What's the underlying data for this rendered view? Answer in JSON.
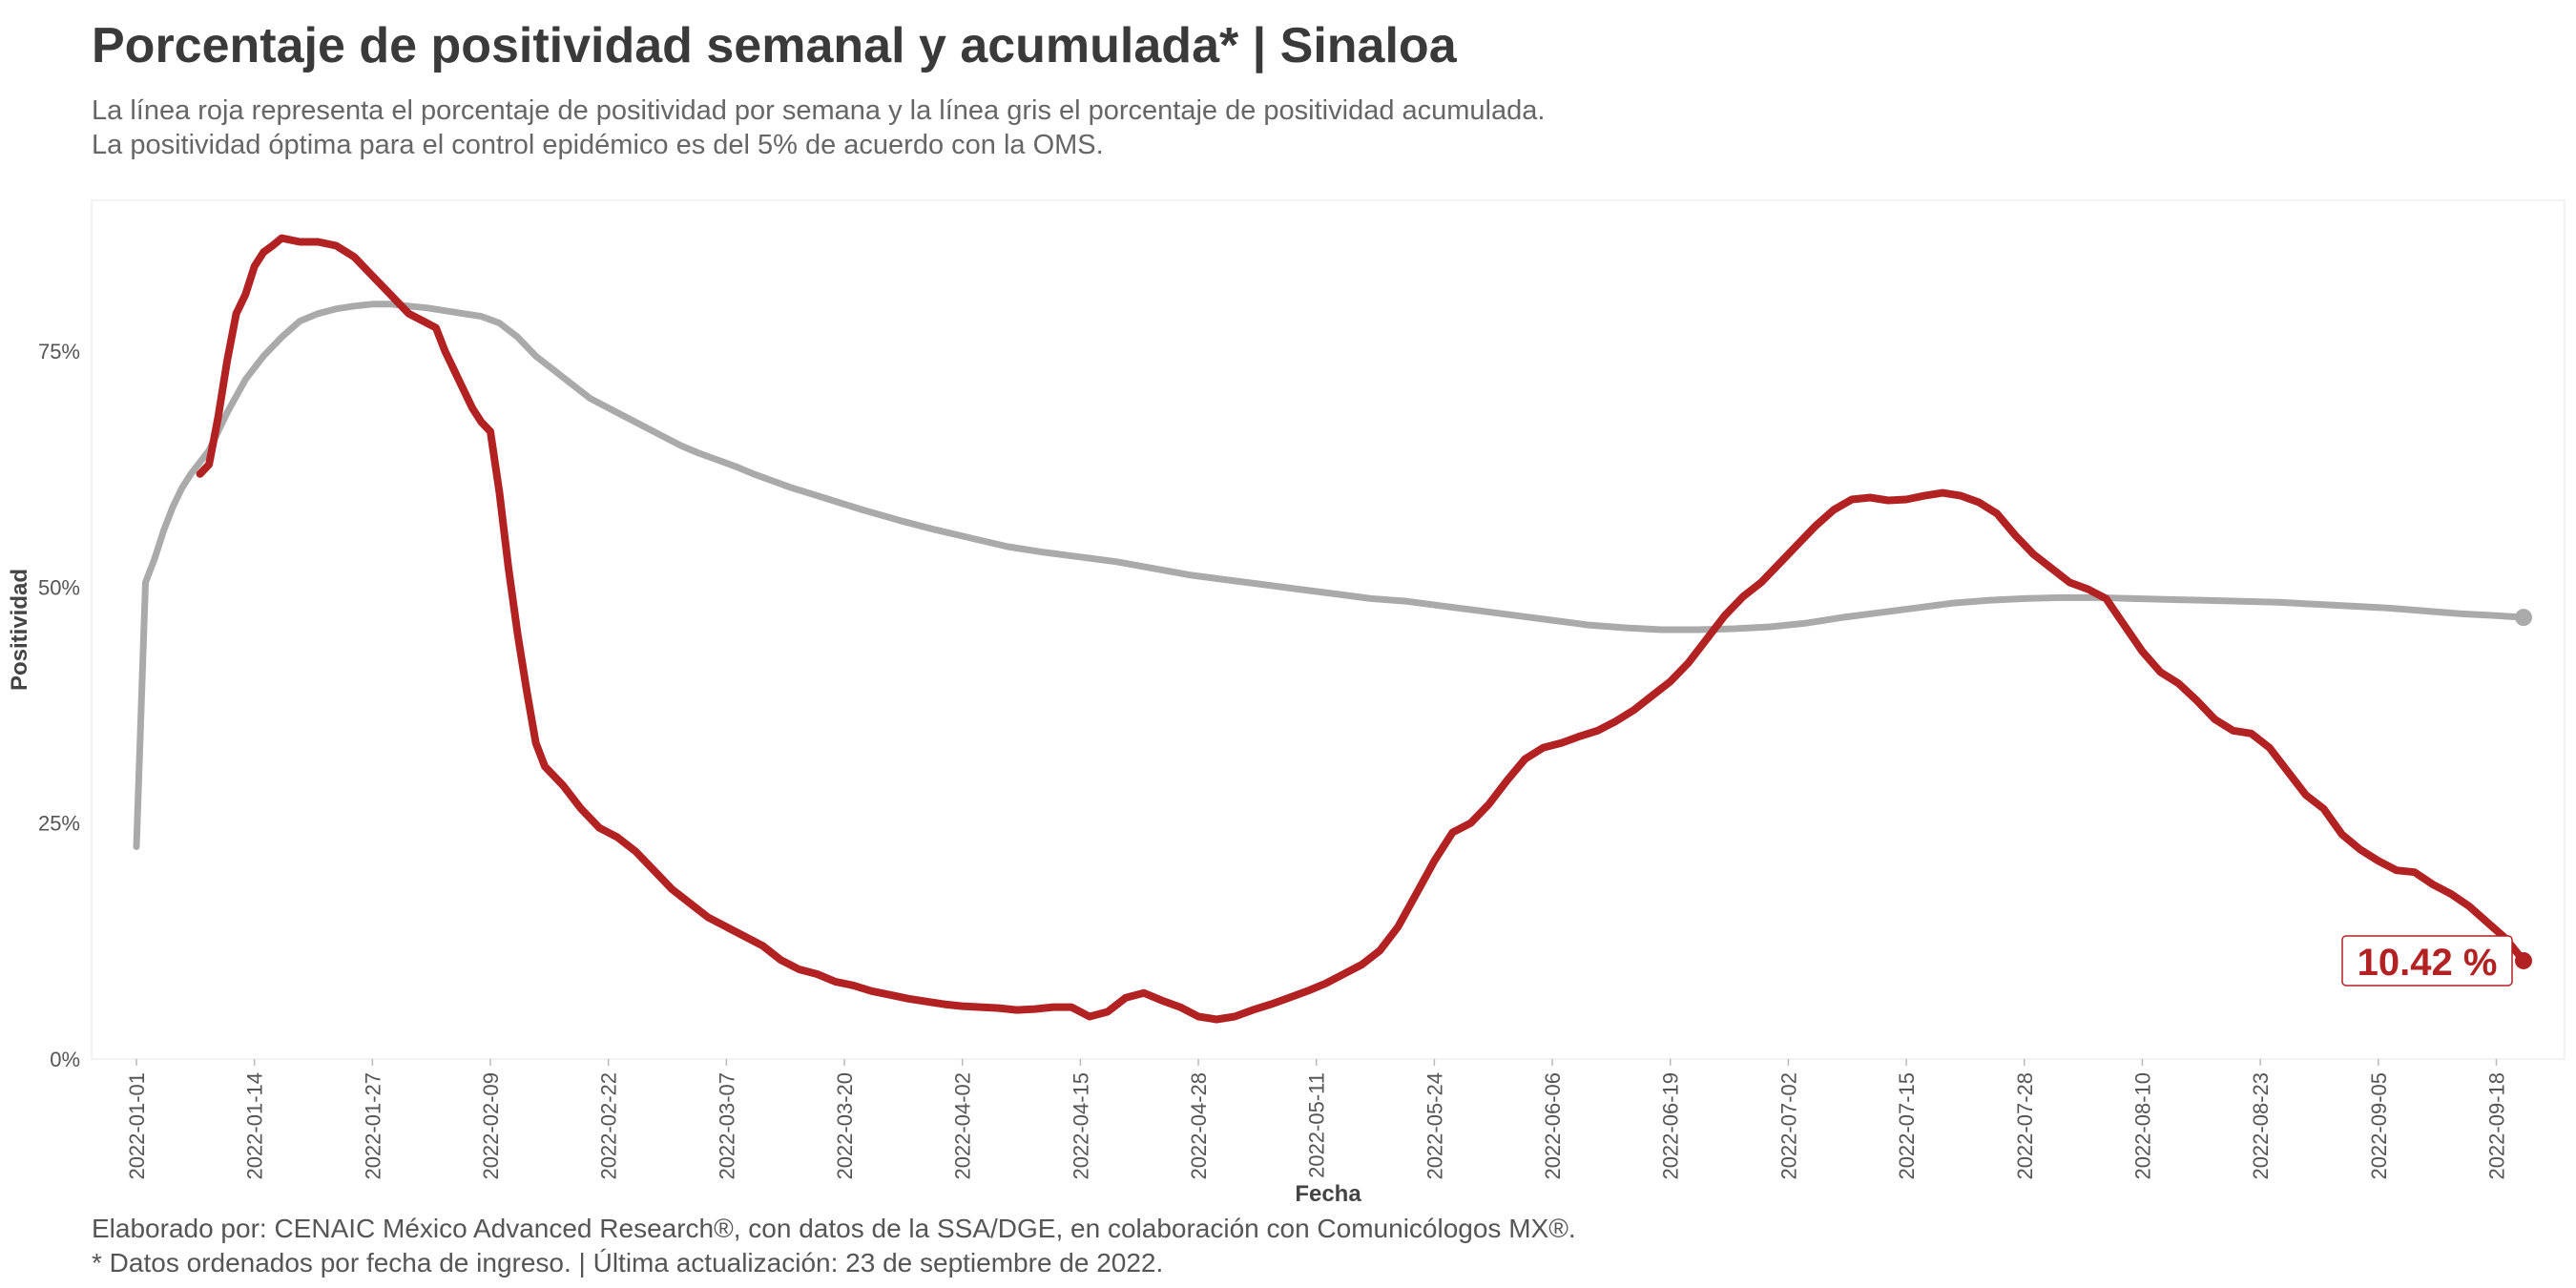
{
  "title": "Porcentaje de positividad semanal y acumulada* | Sinaloa",
  "subtitle_lines": [
    "La línea roja representa el porcentaje de positividad por semana y la línea gris el porcentaje de positividad acumulada.",
    "La positividad óptima para el control epidémico es del 5% de acuerdo con la OMS."
  ],
  "caption_lines": [
    "Elaborado por: CENAIC México Advanced Research®, con datos de la SSA/DGE, en colaboración con Comunicólogos MX®.",
    "* Datos ordenados por fecha de ingreso. | Última actualización: 23 de septiembre de 2022."
  ],
  "colors": {
    "weekly": "#b22222",
    "cumulative": "#aaaaaa",
    "text": "#3a3a3a"
  },
  "chart_data": {
    "type": "line",
    "xlabel": "Fecha",
    "ylabel": "Positividad",
    "x_range": [
      "2022-01-01",
      "2022-09-21"
    ],
    "ylim": [
      0,
      0.91
    ],
    "x_ticks": [
      "2022-01-01",
      "2022-01-14",
      "2022-01-27",
      "2022-02-09",
      "2022-02-22",
      "2022-03-07",
      "2022-03-20",
      "2022-04-02",
      "2022-04-15",
      "2022-04-28",
      "2022-05-11",
      "2022-05-24",
      "2022-06-06",
      "2022-06-19",
      "2022-07-02",
      "2022-07-15",
      "2022-07-28",
      "2022-08-10",
      "2022-08-23",
      "2022-09-05",
      "2022-09-18"
    ],
    "y_ticks": [
      0,
      0.25,
      0.5,
      0.75
    ],
    "y_tick_labels": [
      "0%",
      "25%",
      "50%",
      "75%"
    ],
    "grid": false,
    "annotation": {
      "text": "10.42 %",
      "x": "2022-09-21",
      "y": 0.1042
    },
    "series": [
      {
        "key": "weekly",
        "points": [
          [
            "2022-01-08",
            0.62
          ],
          [
            "2022-01-09",
            0.63
          ],
          [
            "2022-01-10",
            0.68
          ],
          [
            "2022-01-11",
            0.74
          ],
          [
            "2022-01-12",
            0.79
          ],
          [
            "2022-01-13",
            0.81
          ],
          [
            "2022-01-14",
            0.84
          ],
          [
            "2022-01-15",
            0.855
          ],
          [
            "2022-01-16",
            0.862
          ],
          [
            "2022-01-17",
            0.87
          ],
          [
            "2022-01-19",
            0.866
          ],
          [
            "2022-01-21",
            0.866
          ],
          [
            "2022-01-23",
            0.862
          ],
          [
            "2022-01-25",
            0.85
          ],
          [
            "2022-01-27",
            0.83
          ],
          [
            "2022-01-29",
            0.81
          ],
          [
            "2022-01-31",
            0.79
          ],
          [
            "2022-02-02",
            0.78
          ],
          [
            "2022-02-03",
            0.775
          ],
          [
            "2022-02-04",
            0.75
          ],
          [
            "2022-02-05",
            0.73
          ],
          [
            "2022-02-06",
            0.71
          ],
          [
            "2022-02-07",
            0.69
          ],
          [
            "2022-02-08",
            0.675
          ],
          [
            "2022-02-09",
            0.665
          ],
          [
            "2022-02-10",
            0.6
          ],
          [
            "2022-02-11",
            0.52
          ],
          [
            "2022-02-12",
            0.45
          ],
          [
            "2022-02-13",
            0.39
          ],
          [
            "2022-02-14",
            0.335
          ],
          [
            "2022-02-15",
            0.31
          ],
          [
            "2022-02-17",
            0.29
          ],
          [
            "2022-02-19",
            0.265
          ],
          [
            "2022-02-21",
            0.245
          ],
          [
            "2022-02-23",
            0.235
          ],
          [
            "2022-02-25",
            0.22
          ],
          [
            "2022-02-27",
            0.2
          ],
          [
            "2022-03-01",
            0.18
          ],
          [
            "2022-03-03",
            0.165
          ],
          [
            "2022-03-05",
            0.15
          ],
          [
            "2022-03-07",
            0.14
          ],
          [
            "2022-03-09",
            0.13
          ],
          [
            "2022-03-11",
            0.12
          ],
          [
            "2022-03-13",
            0.105
          ],
          [
            "2022-03-15",
            0.095
          ],
          [
            "2022-03-17",
            0.09
          ],
          [
            "2022-03-19",
            0.082
          ],
          [
            "2022-03-21",
            0.078
          ],
          [
            "2022-03-23",
            0.072
          ],
          [
            "2022-03-25",
            0.068
          ],
          [
            "2022-03-27",
            0.064
          ],
          [
            "2022-03-29",
            0.061
          ],
          [
            "2022-03-31",
            0.058
          ],
          [
            "2022-04-02",
            0.056
          ],
          [
            "2022-04-04",
            0.055
          ],
          [
            "2022-04-06",
            0.054
          ],
          [
            "2022-04-08",
            0.052
          ],
          [
            "2022-04-10",
            0.053
          ],
          [
            "2022-04-12",
            0.055
          ],
          [
            "2022-04-14",
            0.055
          ],
          [
            "2022-04-16",
            0.045
          ],
          [
            "2022-04-18",
            0.05
          ],
          [
            "2022-04-20",
            0.065
          ],
          [
            "2022-04-22",
            0.07
          ],
          [
            "2022-04-24",
            0.062
          ],
          [
            "2022-04-26",
            0.055
          ],
          [
            "2022-04-28",
            0.045
          ],
          [
            "2022-04-30",
            0.042
          ],
          [
            "2022-05-02",
            0.045
          ],
          [
            "2022-05-04",
            0.052
          ],
          [
            "2022-05-06",
            0.058
          ],
          [
            "2022-05-08",
            0.065
          ],
          [
            "2022-05-10",
            0.072
          ],
          [
            "2022-05-12",
            0.08
          ],
          [
            "2022-05-14",
            0.09
          ],
          [
            "2022-05-16",
            0.1
          ],
          [
            "2022-05-18",
            0.115
          ],
          [
            "2022-05-20",
            0.14
          ],
          [
            "2022-05-22",
            0.175
          ],
          [
            "2022-05-24",
            0.21
          ],
          [
            "2022-05-26",
            0.24
          ],
          [
            "2022-05-28",
            0.25
          ],
          [
            "2022-05-30",
            0.27
          ],
          [
            "2022-06-01",
            0.295
          ],
          [
            "2022-06-03",
            0.318
          ],
          [
            "2022-06-05",
            0.33
          ],
          [
            "2022-06-07",
            0.335
          ],
          [
            "2022-06-09",
            0.342
          ],
          [
            "2022-06-11",
            0.348
          ],
          [
            "2022-06-13",
            0.358
          ],
          [
            "2022-06-15",
            0.37
          ],
          [
            "2022-06-17",
            0.385
          ],
          [
            "2022-06-19",
            0.4
          ],
          [
            "2022-06-21",
            0.42
          ],
          [
            "2022-06-23",
            0.445
          ],
          [
            "2022-06-25",
            0.47
          ],
          [
            "2022-06-27",
            0.49
          ],
          [
            "2022-06-29",
            0.505
          ],
          [
            "2022-07-01",
            0.525
          ],
          [
            "2022-07-03",
            0.545
          ],
          [
            "2022-07-05",
            0.565
          ],
          [
            "2022-07-07",
            0.582
          ],
          [
            "2022-07-09",
            0.593
          ],
          [
            "2022-07-11",
            0.595
          ],
          [
            "2022-07-13",
            0.592
          ],
          [
            "2022-07-15",
            0.593
          ],
          [
            "2022-07-17",
            0.597
          ],
          [
            "2022-07-19",
            0.6
          ],
          [
            "2022-07-21",
            0.597
          ],
          [
            "2022-07-23",
            0.59
          ],
          [
            "2022-07-25",
            0.578
          ],
          [
            "2022-07-27",
            0.555
          ],
          [
            "2022-07-29",
            0.535
          ],
          [
            "2022-07-31",
            0.52
          ],
          [
            "2022-08-02",
            0.505
          ],
          [
            "2022-08-04",
            0.498
          ],
          [
            "2022-08-06",
            0.488
          ],
          [
            "2022-08-08",
            0.46
          ],
          [
            "2022-08-10",
            0.432
          ],
          [
            "2022-08-12",
            0.41
          ],
          [
            "2022-08-14",
            0.398
          ],
          [
            "2022-08-16",
            0.38
          ],
          [
            "2022-08-18",
            0.36
          ],
          [
            "2022-08-20",
            0.348
          ],
          [
            "2022-08-22",
            0.345
          ],
          [
            "2022-08-24",
            0.33
          ],
          [
            "2022-08-26",
            0.305
          ],
          [
            "2022-08-28",
            0.28
          ],
          [
            "2022-08-30",
            0.265
          ],
          [
            "2022-09-01",
            0.238
          ],
          [
            "2022-09-03",
            0.222
          ],
          [
            "2022-09-05",
            0.21
          ],
          [
            "2022-09-07",
            0.2
          ],
          [
            "2022-09-09",
            0.198
          ],
          [
            "2022-09-11",
            0.185
          ],
          [
            "2022-09-13",
            0.175
          ],
          [
            "2022-09-15",
            0.162
          ],
          [
            "2022-09-17",
            0.145
          ],
          [
            "2022-09-19",
            0.128
          ],
          [
            "2022-09-21",
            0.1042
          ]
        ]
      },
      {
        "key": "cumulative",
        "points": [
          [
            "2022-01-01",
            0.225
          ],
          [
            "2022-01-02",
            0.505
          ],
          [
            "2022-01-03",
            0.53
          ],
          [
            "2022-01-04",
            0.56
          ],
          [
            "2022-01-05",
            0.585
          ],
          [
            "2022-01-06",
            0.605
          ],
          [
            "2022-01-07",
            0.62
          ],
          [
            "2022-01-09",
            0.645
          ],
          [
            "2022-01-11",
            0.685
          ],
          [
            "2022-01-13",
            0.72
          ],
          [
            "2022-01-15",
            0.745
          ],
          [
            "2022-01-17",
            0.765
          ],
          [
            "2022-01-19",
            0.782
          ],
          [
            "2022-01-21",
            0.79
          ],
          [
            "2022-01-23",
            0.795
          ],
          [
            "2022-01-25",
            0.798
          ],
          [
            "2022-01-27",
            0.8
          ],
          [
            "2022-01-29",
            0.8
          ],
          [
            "2022-01-31",
            0.798
          ],
          [
            "2022-02-02",
            0.796
          ],
          [
            "2022-02-04",
            0.793
          ],
          [
            "2022-02-06",
            0.79
          ],
          [
            "2022-02-08",
            0.787
          ],
          [
            "2022-02-10",
            0.78
          ],
          [
            "2022-02-12",
            0.765
          ],
          [
            "2022-02-14",
            0.745
          ],
          [
            "2022-02-16",
            0.73
          ],
          [
            "2022-02-18",
            0.715
          ],
          [
            "2022-02-20",
            0.7
          ],
          [
            "2022-02-22",
            0.69
          ],
          [
            "2022-02-24",
            0.68
          ],
          [
            "2022-02-26",
            0.67
          ],
          [
            "2022-02-28",
            0.66
          ],
          [
            "2022-03-02",
            0.65
          ],
          [
            "2022-03-04",
            0.642
          ],
          [
            "2022-03-06",
            0.635
          ],
          [
            "2022-03-08",
            0.628
          ],
          [
            "2022-03-10",
            0.62
          ],
          [
            "2022-03-14",
            0.606
          ],
          [
            "2022-03-18",
            0.594
          ],
          [
            "2022-03-22",
            0.582
          ],
          [
            "2022-03-26",
            0.571
          ],
          [
            "2022-03-30",
            0.561
          ],
          [
            "2022-04-03",
            0.552
          ],
          [
            "2022-04-07",
            0.543
          ],
          [
            "2022-04-11",
            0.537
          ],
          [
            "2022-04-15",
            0.532
          ],
          [
            "2022-04-19",
            0.527
          ],
          [
            "2022-04-23",
            0.52
          ],
          [
            "2022-04-27",
            0.513
          ],
          [
            "2022-05-01",
            0.508
          ],
          [
            "2022-05-05",
            0.503
          ],
          [
            "2022-05-09",
            0.498
          ],
          [
            "2022-05-13",
            0.493
          ],
          [
            "2022-05-17",
            0.488
          ],
          [
            "2022-05-21",
            0.485
          ],
          [
            "2022-05-25",
            0.48
          ],
          [
            "2022-05-29",
            0.475
          ],
          [
            "2022-06-02",
            0.47
          ],
          [
            "2022-06-06",
            0.465
          ],
          [
            "2022-06-10",
            0.46
          ],
          [
            "2022-06-14",
            0.457
          ],
          [
            "2022-06-18",
            0.455
          ],
          [
            "2022-06-22",
            0.455
          ],
          [
            "2022-06-26",
            0.456
          ],
          [
            "2022-06-30",
            0.458
          ],
          [
            "2022-07-04",
            0.462
          ],
          [
            "2022-07-08",
            0.468
          ],
          [
            "2022-07-12",
            0.473
          ],
          [
            "2022-07-16",
            0.478
          ],
          [
            "2022-07-20",
            0.483
          ],
          [
            "2022-07-24",
            0.486
          ],
          [
            "2022-07-28",
            0.488
          ],
          [
            "2022-08-01",
            0.489
          ],
          [
            "2022-08-05",
            0.489
          ],
          [
            "2022-08-09",
            0.488
          ],
          [
            "2022-08-13",
            0.487
          ],
          [
            "2022-08-17",
            0.486
          ],
          [
            "2022-08-21",
            0.485
          ],
          [
            "2022-08-25",
            0.484
          ],
          [
            "2022-08-29",
            0.482
          ],
          [
            "2022-09-02",
            0.48
          ],
          [
            "2022-09-06",
            0.478
          ],
          [
            "2022-09-10",
            0.475
          ],
          [
            "2022-09-14",
            0.472
          ],
          [
            "2022-09-18",
            0.47
          ],
          [
            "2022-09-21",
            0.468
          ]
        ]
      }
    ]
  }
}
